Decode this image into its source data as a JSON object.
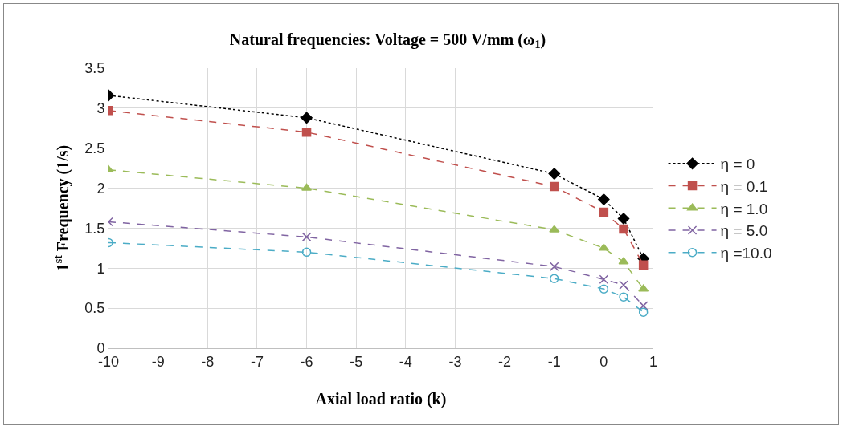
{
  "chart_data": {
    "type": "line",
    "title": "Natural frequencies: Voltage = 500 V/mm (ω$_{1}$)",
    "xlabel": "Axial load ratio (k)",
    "ylabel": "1$^{st}$ Frequency (1/s)",
    "x": [
      -10,
      -6,
      -1,
      0,
      0.4,
      0.8
    ],
    "series": [
      {
        "name": "η = 0",
        "color": "#000000",
        "marker": "diamond",
        "line_style": "dotted",
        "values": [
          3.16,
          2.88,
          2.18,
          1.86,
          1.62,
          1.12
        ]
      },
      {
        "name": "η = 0.1",
        "color": "#c0504d",
        "marker": "square",
        "line_style": "dashed",
        "values": [
          2.97,
          2.7,
          2.02,
          1.7,
          1.49,
          1.04
        ]
      },
      {
        "name": "η = 1.0",
        "color": "#9bbb59",
        "marker": "triangle",
        "line_style": "dashed",
        "values": [
          2.23,
          2.0,
          1.48,
          1.25,
          1.08,
          0.74
        ]
      },
      {
        "name": "η = 5.0",
        "color": "#8064a2",
        "marker": "cross",
        "line_style": "dashed",
        "values": [
          1.58,
          1.39,
          1.02,
          0.86,
          0.79,
          0.53
        ]
      },
      {
        "name": "η =10.0",
        "color": "#4bacc6",
        "marker": "circle",
        "line_style": "dashed",
        "values": [
          1.32,
          1.2,
          0.87,
          0.74,
          0.64,
          0.45
        ]
      }
    ],
    "xlim": [
      -10,
      1
    ],
    "xticks": [
      -10,
      -9,
      -8,
      -7,
      -6,
      -5,
      -4,
      -3,
      -2,
      -1,
      0,
      1
    ],
    "ylim": [
      0,
      3.5
    ],
    "yticks": [
      0,
      0.5,
      1,
      1.5,
      2,
      2.5,
      3,
      3.5
    ],
    "grid": true,
    "legend": "right"
  }
}
